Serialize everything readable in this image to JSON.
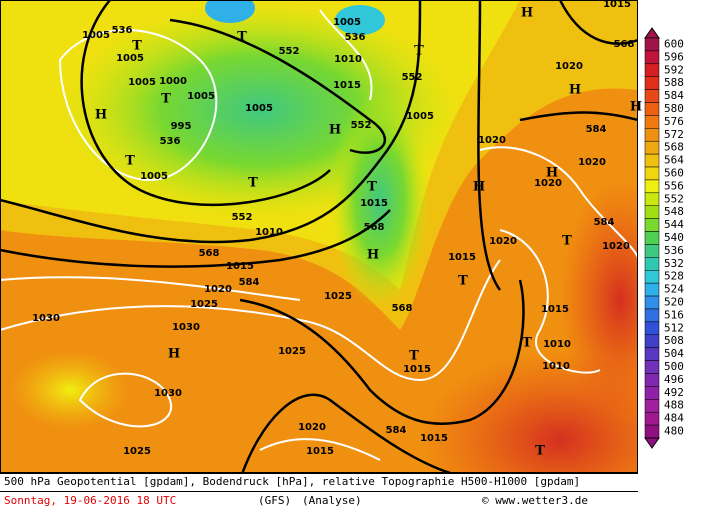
{
  "map": {
    "labels": [
      "536",
      "536",
      "552",
      "552",
      "552",
      "536",
      "552",
      "568",
      "584",
      "568",
      "568",
      "584",
      "584",
      "584",
      "568",
      "1005",
      "1005",
      "1005",
      "1010",
      "1015",
      "1000",
      "1005",
      "1005",
      "1005",
      "995",
      "1005",
      "1010",
      "1020",
      "1020",
      "1020",
      "1020",
      "1020",
      "1015",
      "1015",
      "1010",
      "1010",
      "1015",
      "1015",
      "1015",
      "1020",
      "1025",
      "1025",
      "1025",
      "1030",
      "1030",
      "1030",
      "1025",
      "1020",
      "1015",
      "1015",
      "1020",
      "1015",
      "1005"
    ],
    "centers": [
      "H",
      "H",
      "H",
      "T",
      "T",
      "T",
      "T",
      "T",
      "H",
      "T",
      "T",
      "H",
      "H",
      "T",
      "T",
      "H",
      "T",
      "T",
      "H",
      "T",
      "H"
    ]
  },
  "legend": {
    "levels": [
      600,
      596,
      592,
      588,
      584,
      580,
      576,
      572,
      568,
      564,
      560,
      556,
      552,
      548,
      544,
      540,
      536,
      532,
      528,
      524,
      520,
      516,
      512,
      508,
      504,
      500,
      496,
      492,
      488,
      484,
      480
    ],
    "colors": [
      "#a0144a",
      "#c0143c",
      "#d42020",
      "#e03018",
      "#e84818",
      "#ec6010",
      "#f07810",
      "#f09010",
      "#f0a810",
      "#f0c010",
      "#f0d810",
      "#f0f010",
      "#c8e810",
      "#a0e010",
      "#78d830",
      "#50d050",
      "#40c880",
      "#30c8b0",
      "#30c8d8",
      "#30b0e8",
      "#3090e8",
      "#3070e0",
      "#3050d8",
      "#4040c8",
      "#5838c0",
      "#7030b8",
      "#8028b0",
      "#9020a8",
      "#a020a0",
      "#a01890",
      "#901080"
    ]
  },
  "footer": {
    "line1": "500 hPa Geopotential [gpdam], Bodendruck [hPa], relative Topographie H500-H1000 [gpdam]",
    "date": "Sonntag, 19-06-2016  18 UTC",
    "model": "(GFS)",
    "run": "(Analyse)",
    "credit": "© www.wetter3.de"
  }
}
